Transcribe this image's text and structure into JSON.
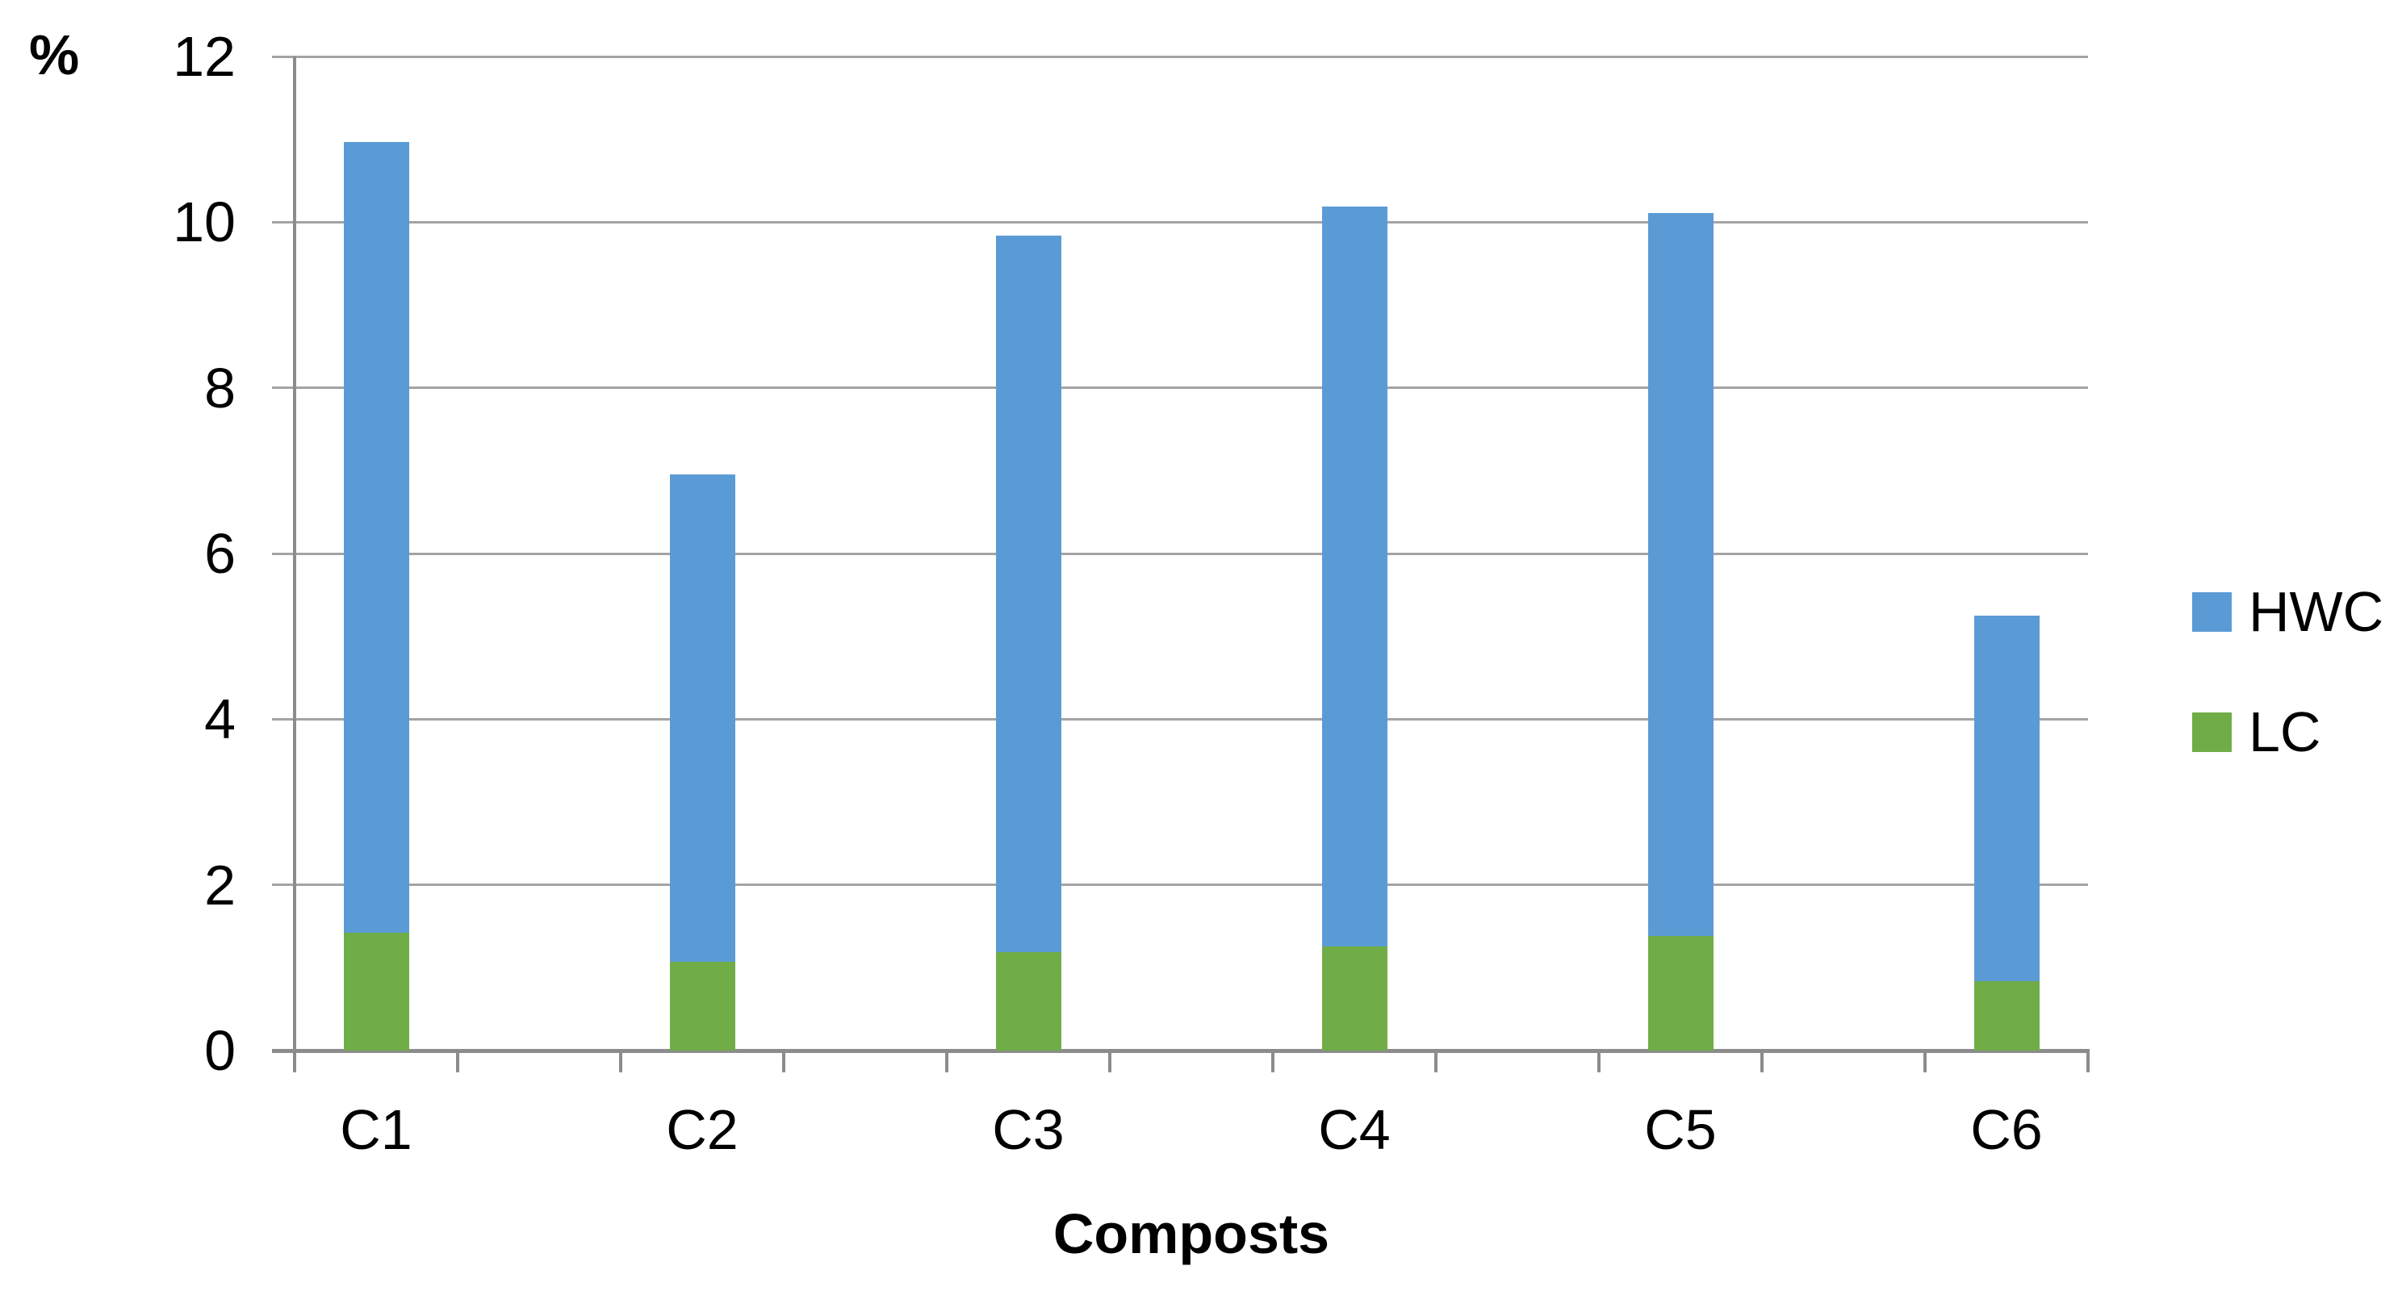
{
  "chart_data": {
    "type": "bar",
    "stacked": true,
    "title": "",
    "xlabel": "Composts",
    "ylabel": "%",
    "categories": [
      "C1",
      "C2",
      "C3",
      "C4",
      "C5",
      "C6"
    ],
    "series": [
      {
        "name": "LC",
        "color": "#70AD47",
        "values": [
          1.42,
          1.07,
          1.19,
          1.26,
          1.38,
          0.84
        ]
      },
      {
        "name": "HWC",
        "color": "#5B9BD5",
        "values": [
          9.55,
          5.88,
          8.65,
          8.93,
          8.73,
          4.41
        ]
      }
    ],
    "stacked_totals": [
      10.97,
      6.95,
      9.84,
      10.19,
      10.11,
      5.25
    ],
    "ylim": [
      0,
      12
    ],
    "yticks": [
      0,
      2,
      4,
      6,
      8,
      10,
      12
    ],
    "grid": "horizontal",
    "legend_position": "right",
    "legend": [
      {
        "label": "HWC",
        "color": "#5B9BD5"
      },
      {
        "label": "LC",
        "color": "#70AD47"
      }
    ]
  },
  "colors": {
    "axis": "#8C8C8C",
    "gridline": "#A3A3A3",
    "text": "#000000",
    "background": "#FFFFFF"
  }
}
